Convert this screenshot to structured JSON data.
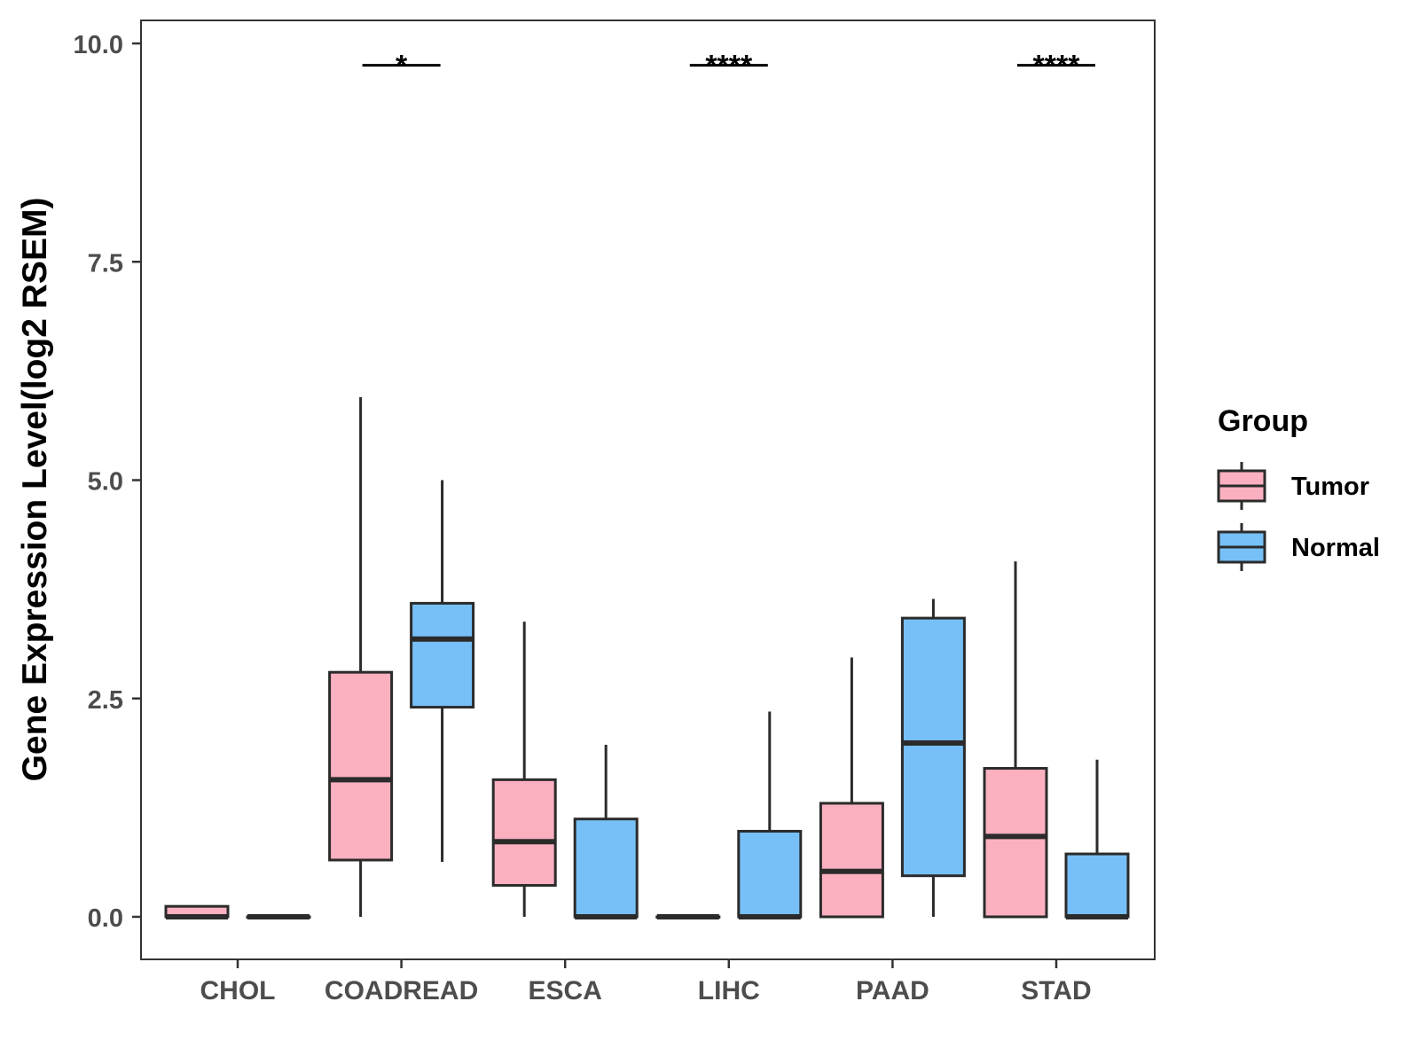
{
  "chart_data": {
    "type": "boxplot",
    "title": "",
    "xlabel": "",
    "ylabel": "Gene Expression Level(log2 RSEM)",
    "ylim": [
      -0.48,
      10.28
    ],
    "yticks": [
      0.0,
      2.5,
      5.0,
      7.5,
      10.0
    ],
    "ytick_labels": [
      "0.0",
      "2.5",
      "5.0",
      "7.5",
      "10.0"
    ],
    "categories": [
      "CHOL",
      "COADREAD",
      "ESCA",
      "LIHC",
      "PAAD",
      "STAD"
    ],
    "grid": false,
    "legend": {
      "title": "Group",
      "position": "right",
      "entries": [
        {
          "name": "Tumor",
          "color": "#fbb0c0"
        },
        {
          "name": "Normal",
          "color": "#76c0f7"
        }
      ]
    },
    "series": [
      {
        "name": "Tumor",
        "color": "#fbb0c0",
        "boxes": [
          {
            "category": "CHOL",
            "min": 0.0,
            "q1": 0.0,
            "median": 0.0,
            "q3": 0.12,
            "max": 0.12
          },
          {
            "category": "COADREAD",
            "min": 0.0,
            "q1": 0.65,
            "median": 1.57,
            "q3": 2.8,
            "max": 5.95
          },
          {
            "category": "ESCA",
            "min": 0.0,
            "q1": 0.36,
            "median": 0.86,
            "q3": 1.57,
            "max": 3.38
          },
          {
            "category": "LIHC",
            "min": 0.0,
            "q1": 0.0,
            "median": 0.0,
            "q3": 0.0,
            "max": 0.0
          },
          {
            "category": "PAAD",
            "min": 0.0,
            "q1": 0.0,
            "median": 0.52,
            "q3": 1.3,
            "max": 2.97
          },
          {
            "category": "STAD",
            "min": 0.0,
            "q1": 0.0,
            "median": 0.92,
            "q3": 1.7,
            "max": 4.07
          }
        ]
      },
      {
        "name": "Normal",
        "color": "#76c0f7",
        "boxes": [
          {
            "category": "CHOL",
            "min": 0.0,
            "q1": 0.0,
            "median": 0.0,
            "q3": 0.0,
            "max": 0.0
          },
          {
            "category": "COADREAD",
            "min": 0.63,
            "q1": 2.4,
            "median": 3.18,
            "q3": 3.59,
            "max": 5.0
          },
          {
            "category": "ESCA",
            "min": 0.0,
            "q1": 0.0,
            "median": 0.0,
            "q3": 1.12,
            "max": 1.97
          },
          {
            "category": "LIHC",
            "min": 0.0,
            "q1": 0.0,
            "median": 0.0,
            "q3": 0.98,
            "max": 2.35
          },
          {
            "category": "PAAD",
            "min": 0.0,
            "q1": 0.47,
            "median": 1.99,
            "q3": 3.42,
            "max": 3.64
          },
          {
            "category": "STAD",
            "min": 0.0,
            "q1": 0.0,
            "median": 0.0,
            "q3": 0.72,
            "max": 1.8
          }
        ]
      }
    ],
    "significance": [
      {
        "category": "COADREAD",
        "label": "*",
        "y": 9.75
      },
      {
        "category": "LIHC",
        "label": "****",
        "y": 9.75
      },
      {
        "category": "STAD",
        "label": "****",
        "y": 9.75
      }
    ]
  }
}
